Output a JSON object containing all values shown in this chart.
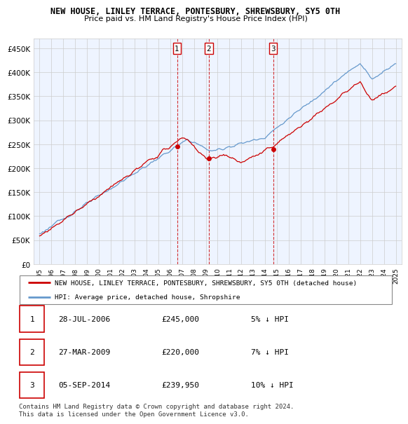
{
  "title": "NEW HOUSE, LINLEY TERRACE, PONTESBURY, SHREWSBURY, SY5 0TH",
  "subtitle": "Price paid vs. HM Land Registry's House Price Index (HPI)",
  "yticks": [
    0,
    50000,
    100000,
    150000,
    200000,
    250000,
    300000,
    350000,
    400000,
    450000
  ],
  "ytick_labels": [
    "£0",
    "£50K",
    "£100K",
    "£150K",
    "£200K",
    "£250K",
    "£300K",
    "£350K",
    "£400K",
    "£450K"
  ],
  "ylim": [
    0,
    470000
  ],
  "sale_year_nums": [
    2006.58,
    2009.25,
    2014.67
  ],
  "sale_prices": [
    245000,
    220000,
    239950
  ],
  "sale_labels": [
    "1",
    "2",
    "3"
  ],
  "legend_red_label": "NEW HOUSE, LINLEY TERRACE, PONTESBURY, SHREWSBURY, SY5 0TH (detached house)",
  "legend_blue_label": "HPI: Average price, detached house, Shropshire",
  "table_rows": [
    [
      "1",
      "28-JUL-2006",
      "£245,000",
      "5% ↓ HPI"
    ],
    [
      "2",
      "27-MAR-2009",
      "£220,000",
      "7% ↓ HPI"
    ],
    [
      "3",
      "05-SEP-2014",
      "£239,950",
      "10% ↓ HPI"
    ]
  ],
  "footnote": "Contains HM Land Registry data © Crown copyright and database right 2024.\nThis data is licensed under the Open Government Licence v3.0.",
  "red_color": "#cc0000",
  "blue_color": "#6699cc",
  "blue_fill_color": "#ddeeff",
  "grid_color": "#cccccc",
  "bg_color": "#ffffff",
  "chart_bg_color": "#eef4ff"
}
